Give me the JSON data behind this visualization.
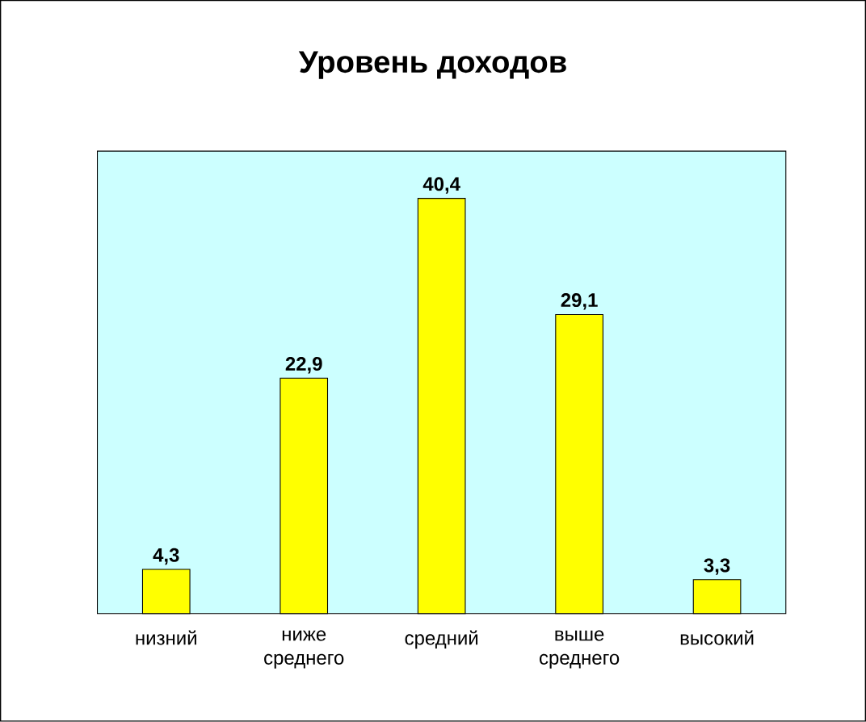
{
  "chart_data": {
    "type": "bar",
    "title": "Уровень доходов",
    "categories": [
      "низний",
      "ниже среднего",
      "средний",
      "выше среднего",
      "высокий"
    ],
    "values": [
      4.3,
      22.9,
      40.4,
      29.1,
      3.3
    ],
    "value_labels": [
      "4,3",
      "22,9",
      "40,4",
      "29,1",
      "3,3"
    ],
    "color": "#ffff00",
    "ylim": [
      0,
      45
    ],
    "tick_labels": "x"
  }
}
